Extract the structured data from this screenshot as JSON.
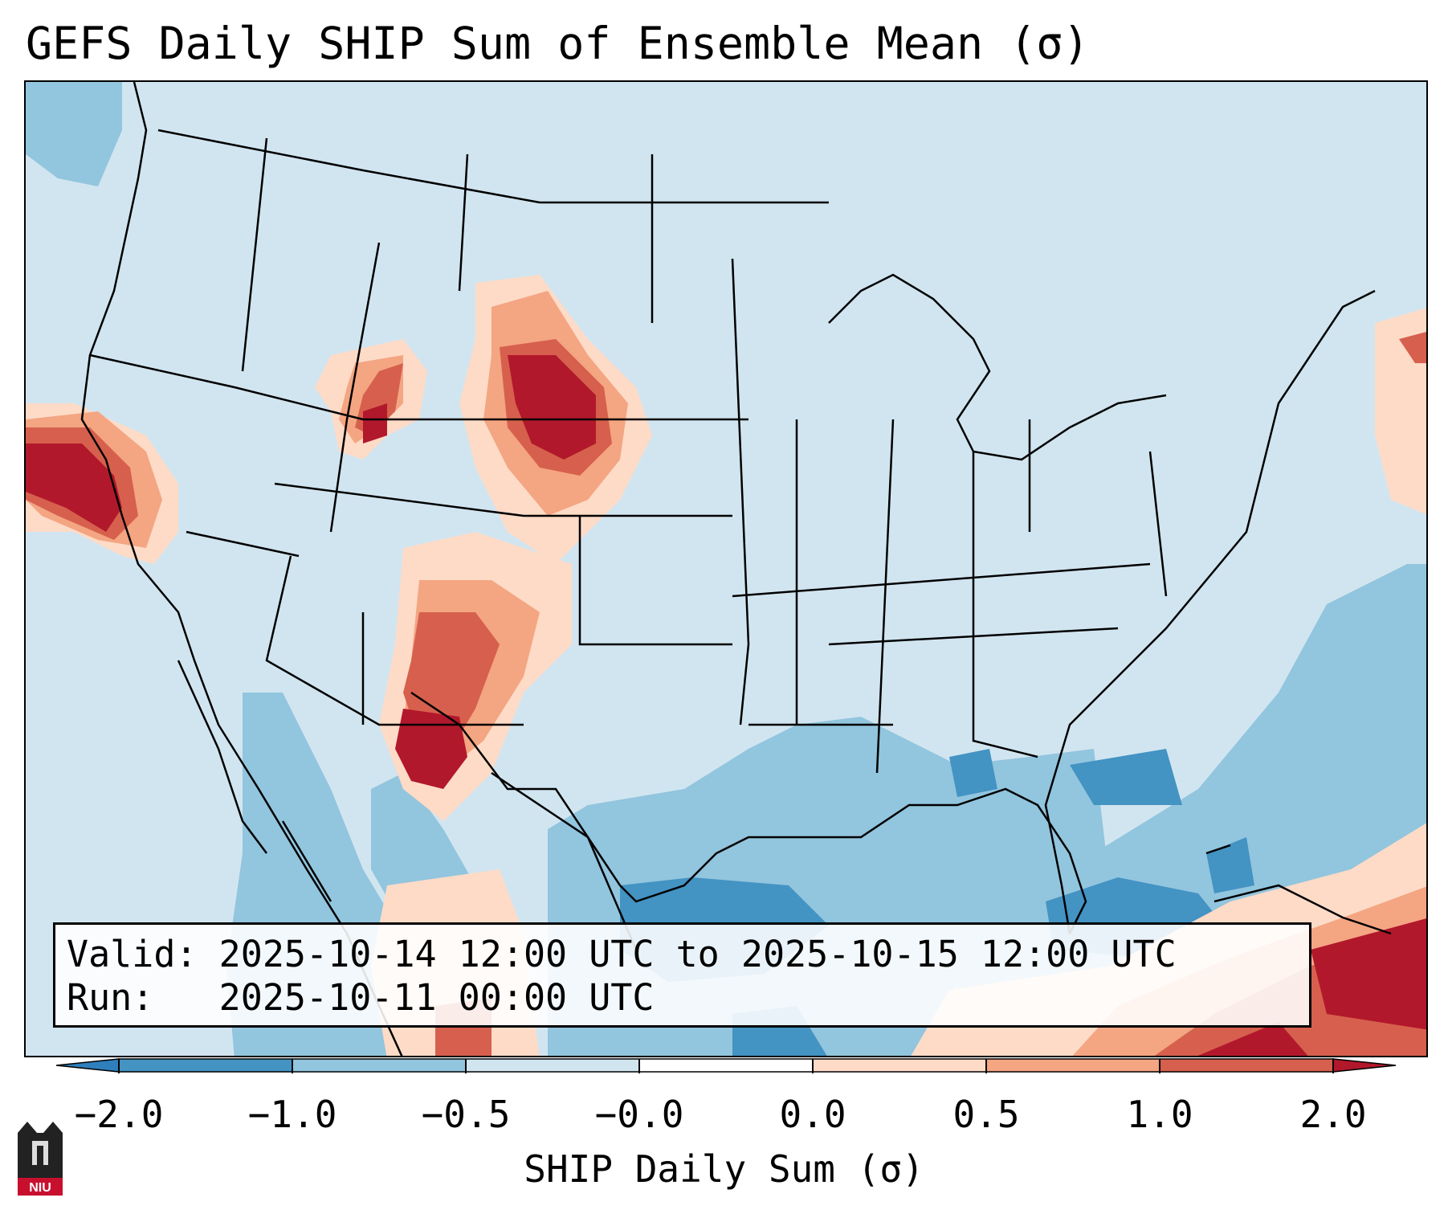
{
  "title": "GEFS Daily SHIP Sum of Ensemble Mean (σ)",
  "info": {
    "valid_line": "Valid: 2025-10-14 12:00 UTC to 2025-10-15 12:00 UTC",
    "run_line": "Run:   2025-10-11 00:00 UTC"
  },
  "colorbar": {
    "label": "SHIP Daily Sum (σ)",
    "tick_labels": [
      "−2.0",
      "−1.0",
      "−0.5",
      "−0.0",
      "0.0",
      "0.5",
      "1.0",
      "2.0"
    ],
    "colors": [
      "#2f7fbc",
      "#4393c3",
      "#92c5de",
      "#d1e5f0",
      "#fddbc7",
      "#f4a582",
      "#d6604d",
      "#b2182b"
    ],
    "extend": "both"
  },
  "legend_colors": {
    "very_low": "#4393c3",
    "low": "#92c5de",
    "neutral_low": "#d1e5f0",
    "neutral_high": "#fddbc7",
    "mid_high": "#f4a582",
    "high": "#d6604d",
    "very_high": "#b2182b"
  },
  "logo": {
    "text": "NIU",
    "icon": "niu-university-logo-icon"
  }
}
